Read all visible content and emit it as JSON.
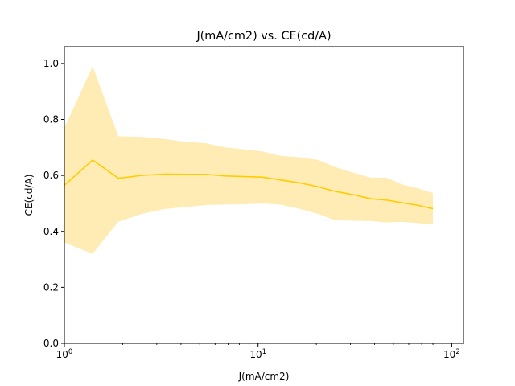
{
  "chart_data": {
    "type": "line",
    "title": "J(mA/cm2) vs. CE(cd/A)",
    "xlabel": "J(mA/cm2)",
    "ylabel": "CE(cd/A)",
    "xscale": "log",
    "xlim": [
      1,
      115
    ],
    "ylim": [
      0,
      1.06
    ],
    "x_ticks": [
      {
        "value": 1,
        "base": "10",
        "exp": "0"
      },
      {
        "value": 10,
        "base": "10",
        "exp": "1"
      },
      {
        "value": 100,
        "base": "10",
        "exp": "2"
      }
    ],
    "y_ticks": [
      {
        "value": 0,
        "label": "0.0"
      },
      {
        "value": 0.2,
        "label": "0.2"
      },
      {
        "value": 0.4,
        "label": "0.4"
      },
      {
        "value": 0.6,
        "label": "0.6"
      },
      {
        "value": 0.8,
        "label": "0.8"
      },
      {
        "value": 1.0,
        "label": "1.0"
      }
    ],
    "grid": false,
    "legend": "none",
    "colors": {
      "line": "#ffcc00",
      "band": "#ffe9a8"
    },
    "series": [
      {
        "x": [
          1.0,
          1.4,
          1.9,
          2.5,
          3.3,
          4.2,
          5.4,
          6.8,
          8.5,
          10.5,
          13.0,
          16.5,
          20.5,
          25.0,
          31.0,
          38.0,
          46.0,
          55.0,
          66.0,
          80.0
        ],
        "y": [
          0.565,
          0.655,
          0.59,
          0.6,
          0.605,
          0.604,
          0.604,
          0.598,
          0.596,
          0.594,
          0.584,
          0.573,
          0.559,
          0.543,
          0.531,
          0.517,
          0.512,
          0.503,
          0.494,
          0.481
        ],
        "upper": [
          0.77,
          0.99,
          0.74,
          0.738,
          0.73,
          0.72,
          0.715,
          0.7,
          0.693,
          0.686,
          0.67,
          0.665,
          0.655,
          0.63,
          0.61,
          0.592,
          0.592,
          0.568,
          0.555,
          0.537
        ],
        "lower": [
          0.36,
          0.32,
          0.435,
          0.462,
          0.48,
          0.487,
          0.494,
          0.496,
          0.497,
          0.5,
          0.496,
          0.48,
          0.462,
          0.44,
          0.438,
          0.437,
          0.432,
          0.434,
          0.43,
          0.425
        ]
      }
    ]
  }
}
